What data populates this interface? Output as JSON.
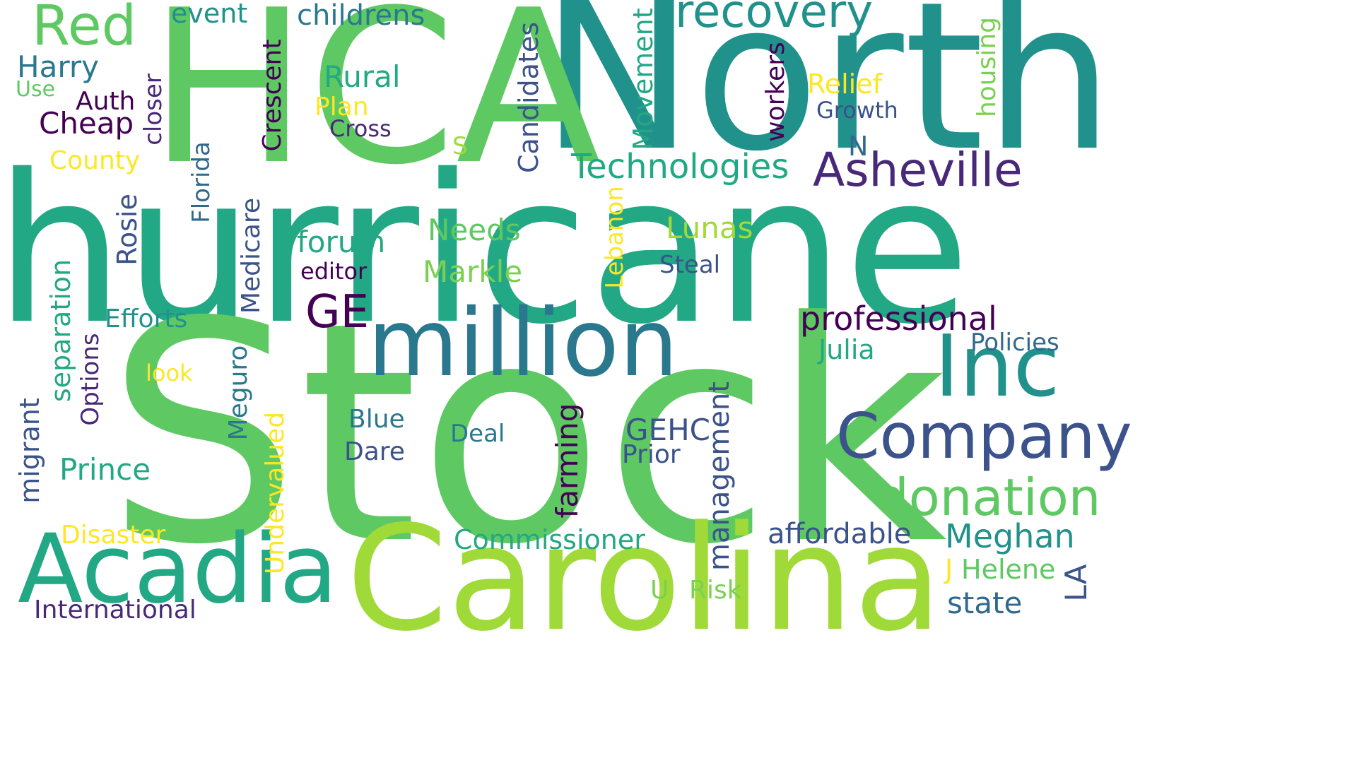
{
  "words": [
    {
      "text": "hurricane",
      "color": "#22a884"
    },
    {
      "text": "Stock",
      "color": "#5ec962"
    },
    {
      "text": "North",
      "color": "#21918c"
    },
    {
      "text": "HCA",
      "color": "#5ec962"
    },
    {
      "text": "Carolina",
      "color": "#a0da39"
    },
    {
      "text": "million",
      "color": "#2a788e"
    },
    {
      "text": "Acadia",
      "color": "#22a884"
    },
    {
      "text": "Inc",
      "color": "#21918c"
    },
    {
      "text": "Company",
      "color": "#3b528b"
    },
    {
      "text": "donation",
      "color": "#5ec962"
    },
    {
      "text": "Asheville",
      "color": "#482878"
    },
    {
      "text": "recovery",
      "color": "#21918c"
    },
    {
      "text": "Red",
      "color": "#5ec962"
    },
    {
      "text": "Technologies",
      "color": "#22a884"
    },
    {
      "text": "GE",
      "color": "#440154"
    },
    {
      "text": "professional",
      "color": "#440154"
    },
    {
      "text": "Meghan",
      "color": "#21918c"
    },
    {
      "text": "Rural",
      "color": "#22a884"
    },
    {
      "text": "Needs",
      "color": "#5ec962"
    },
    {
      "text": "Markle",
      "color": "#7ad151"
    },
    {
      "text": "Lunas",
      "color": "#a0da39"
    },
    {
      "text": "forum",
      "color": "#22a884"
    },
    {
      "text": "Harry",
      "color": "#2a788e"
    },
    {
      "text": "Cheap",
      "color": "#440154"
    },
    {
      "text": "Auth",
      "color": "#440154"
    },
    {
      "text": "childrens",
      "color": "#2a788e"
    },
    {
      "text": "event",
      "color": "#21918c"
    },
    {
      "text": "Relief",
      "color": "#fde725"
    },
    {
      "text": "Growth",
      "color": "#3b528b"
    },
    {
      "text": "Plan",
      "color": "#fde725"
    },
    {
      "text": "Cross",
      "color": "#482878"
    },
    {
      "text": "County",
      "color": "#fde725"
    },
    {
      "text": "Use",
      "color": "#5ec962"
    },
    {
      "text": "S",
      "color": "#a0da39"
    },
    {
      "text": "N",
      "color": "#31688e"
    },
    {
      "text": "editor",
      "color": "#440154"
    },
    {
      "text": "Steal",
      "color": "#3b528b"
    },
    {
      "text": "Efforts",
      "color": "#21918c"
    },
    {
      "text": "look",
      "color": "#fde725"
    },
    {
      "text": "Julia",
      "color": "#22a884"
    },
    {
      "text": "Policies",
      "color": "#31688e"
    },
    {
      "text": "Blue",
      "color": "#2a788e"
    },
    {
      "text": "Dare",
      "color": "#3b528b"
    },
    {
      "text": "Deal",
      "color": "#2a788e"
    },
    {
      "text": "GEHC",
      "color": "#3b528b"
    },
    {
      "text": "Prior",
      "color": "#3b528b"
    },
    {
      "text": "Prince",
      "color": "#22a884"
    },
    {
      "text": "Disaster",
      "color": "#fde725"
    },
    {
      "text": "Commissioner",
      "color": "#22a884"
    },
    {
      "text": "affordable",
      "color": "#3b528b"
    },
    {
      "text": "J",
      "color": "#fde725"
    },
    {
      "text": "Helene",
      "color": "#5ec962"
    },
    {
      "text": "state",
      "color": "#31688e"
    },
    {
      "text": "U",
      "color": "#7ad151"
    },
    {
      "text": "Risk",
      "color": "#7ad151"
    },
    {
      "text": "International",
      "color": "#482878"
    },
    {
      "text": "LA",
      "color": "#3b528b"
    },
    {
      "text": "closer",
      "color": "#482878"
    },
    {
      "text": "Crescent",
      "color": "#440154"
    },
    {
      "text": "Florida",
      "color": "#31688e"
    },
    {
      "text": "Rosie",
      "color": "#3b528b"
    },
    {
      "text": "Medicare",
      "color": "#3b528b"
    },
    {
      "text": "separation",
      "color": "#22a884"
    },
    {
      "text": "Options",
      "color": "#482878"
    },
    {
      "text": "migrant",
      "color": "#3b528b"
    },
    {
      "text": "Meguro",
      "color": "#2a788e"
    },
    {
      "text": "Undervalued",
      "color": "#fde725"
    },
    {
      "text": "farming",
      "color": "#440154"
    },
    {
      "text": "management",
      "color": "#3b528b"
    },
    {
      "text": "Lebanon",
      "color": "#fde725"
    },
    {
      "text": "Candidates",
      "color": "#3b528b"
    },
    {
      "text": "Movement",
      "color": "#22a884"
    },
    {
      "text": "workers",
      "color": "#440154"
    },
    {
      "text": "housing",
      "color": "#7ad151"
    }
  ]
}
